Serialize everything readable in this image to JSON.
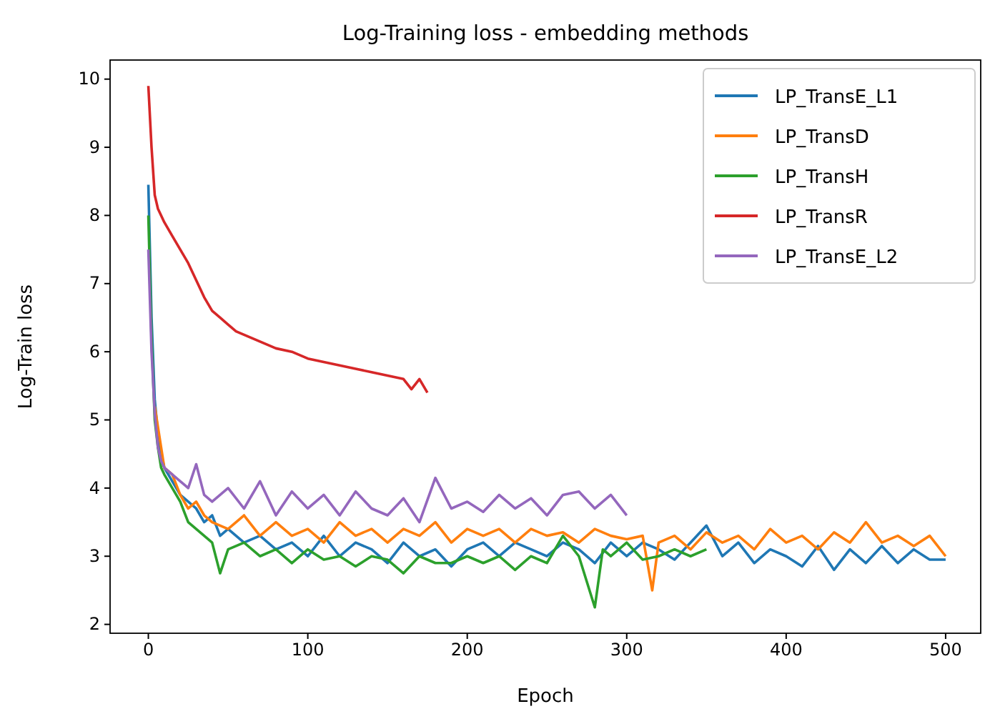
{
  "chart_data": {
    "type": "line",
    "title": "Log-Training loss - embedding methods",
    "xlabel": "Epoch",
    "ylabel": "Log-Train loss",
    "xlim": [
      -24,
      522
    ],
    "ylim": [
      1.87,
      10.28
    ],
    "xticks": [
      0,
      100,
      200,
      300,
      400,
      500
    ],
    "yticks": [
      2,
      3,
      4,
      5,
      6,
      7,
      8,
      9,
      10
    ],
    "legend": "top right",
    "grid": false,
    "series": [
      {
        "name": "LP_TransE_L1",
        "color": "#1f77b4",
        "x": [
          0,
          2,
          4,
          6,
          8,
          10,
          15,
          20,
          25,
          30,
          35,
          40,
          45,
          50,
          60,
          70,
          80,
          90,
          100,
          110,
          120,
          130,
          140,
          150,
          160,
          170,
          180,
          190,
          200,
          210,
          220,
          230,
          240,
          250,
          260,
          270,
          280,
          290,
          300,
          310,
          320,
          330,
          340,
          350,
          360,
          370,
          380,
          390,
          400,
          410,
          420,
          430,
          440,
          450,
          460,
          470,
          480,
          490,
          500
        ],
        "values": [
          8.45,
          6.5,
          5.3,
          4.8,
          4.5,
          4.3,
          4.1,
          3.9,
          3.8,
          3.7,
          3.5,
          3.6,
          3.3,
          3.4,
          3.2,
          3.3,
          3.1,
          3.2,
          3.0,
          3.3,
          3.0,
          3.2,
          3.1,
          2.9,
          3.2,
          3.0,
          3.1,
          2.85,
          3.1,
          3.2,
          3.0,
          3.2,
          3.1,
          3.0,
          3.2,
          3.1,
          2.9,
          3.2,
          3.0,
          3.2,
          3.1,
          2.95,
          3.2,
          3.45,
          3.0,
          3.2,
          2.9,
          3.1,
          3.0,
          2.85,
          3.15,
          2.8,
          3.1,
          2.9,
          3.15,
          2.9,
          3.1,
          2.95,
          2.95
        ]
      },
      {
        "name": "LP_TransD",
        "color": "#ff7f0e",
        "x": [
          4,
          6,
          8,
          10,
          15,
          20,
          25,
          30,
          35,
          40,
          50,
          60,
          70,
          80,
          90,
          100,
          110,
          120,
          130,
          140,
          150,
          160,
          170,
          180,
          190,
          200,
          210,
          220,
          230,
          240,
          250,
          260,
          270,
          280,
          290,
          300,
          310,
          316,
          320,
          330,
          340,
          350,
          360,
          370,
          380,
          390,
          400,
          410,
          420,
          430,
          440,
          450,
          460,
          470,
          480,
          490,
          500
        ],
        "values": [
          5.2,
          4.9,
          4.6,
          4.3,
          4.2,
          3.9,
          3.7,
          3.8,
          3.6,
          3.5,
          3.4,
          3.6,
          3.3,
          3.5,
          3.3,
          3.4,
          3.2,
          3.5,
          3.3,
          3.4,
          3.2,
          3.4,
          3.3,
          3.5,
          3.2,
          3.4,
          3.3,
          3.4,
          3.2,
          3.4,
          3.3,
          3.35,
          3.2,
          3.4,
          3.3,
          3.25,
          3.3,
          2.5,
          3.2,
          3.3,
          3.1,
          3.35,
          3.2,
          3.3,
          3.1,
          3.4,
          3.2,
          3.3,
          3.1,
          3.35,
          3.2,
          3.5,
          3.2,
          3.3,
          3.15,
          3.3,
          3.0
        ]
      },
      {
        "name": "LP_TransH",
        "color": "#2ca02c",
        "x": [
          0,
          2,
          4,
          6,
          8,
          10,
          15,
          20,
          25,
          30,
          35,
          40,
          45,
          50,
          60,
          70,
          80,
          90,
          100,
          110,
          120,
          130,
          140,
          150,
          160,
          170,
          180,
          190,
          200,
          210,
          220,
          230,
          240,
          250,
          260,
          270,
          280,
          285,
          290,
          300,
          310,
          320,
          330,
          340,
          350
        ],
        "values": [
          8.0,
          6.2,
          5.0,
          4.6,
          4.3,
          4.2,
          4.0,
          3.8,
          3.5,
          3.4,
          3.3,
          3.2,
          2.75,
          3.1,
          3.2,
          3.0,
          3.1,
          2.9,
          3.1,
          2.95,
          3.0,
          2.85,
          3.0,
          2.95,
          2.75,
          3.0,
          2.9,
          2.9,
          3.0,
          2.9,
          3.0,
          2.8,
          3.0,
          2.9,
          3.3,
          3.0,
          2.25,
          3.1,
          3.0,
          3.2,
          2.95,
          3.0,
          3.1,
          3.0,
          3.1
        ]
      },
      {
        "name": "LP_TransR",
        "color": "#d62728",
        "x": [
          0,
          2,
          4,
          6,
          10,
          15,
          20,
          25,
          30,
          35,
          40,
          45,
          50,
          55,
          60,
          65,
          70,
          80,
          90,
          100,
          110,
          120,
          130,
          140,
          150,
          160,
          165,
          170,
          175
        ],
        "values": [
          9.9,
          9.0,
          8.3,
          8.1,
          7.9,
          7.7,
          7.5,
          7.3,
          7.05,
          6.8,
          6.6,
          6.5,
          6.4,
          6.3,
          6.25,
          6.2,
          6.15,
          6.05,
          6.0,
          5.9,
          5.85,
          5.8,
          5.75,
          5.7,
          5.65,
          5.6,
          5.45,
          5.6,
          5.4
        ]
      },
      {
        "name": "LP_TransE_L2",
        "color": "#9467bd",
        "x": [
          0,
          2,
          4,
          6,
          8,
          10,
          15,
          20,
          25,
          30,
          35,
          40,
          50,
          60,
          70,
          80,
          90,
          100,
          110,
          120,
          130,
          140,
          150,
          160,
          170,
          180,
          190,
          200,
          210,
          220,
          230,
          240,
          250,
          260,
          270,
          280,
          290,
          300
        ],
        "values": [
          7.5,
          6.0,
          5.1,
          4.6,
          4.4,
          4.3,
          4.2,
          4.1,
          4.0,
          4.35,
          3.9,
          3.8,
          4.0,
          3.7,
          4.1,
          3.6,
          3.95,
          3.7,
          3.9,
          3.6,
          3.95,
          3.7,
          3.6,
          3.85,
          3.5,
          4.15,
          3.7,
          3.8,
          3.65,
          3.9,
          3.7,
          3.85,
          3.6,
          3.9,
          3.95,
          3.7,
          3.9,
          3.6
        ]
      }
    ]
  }
}
